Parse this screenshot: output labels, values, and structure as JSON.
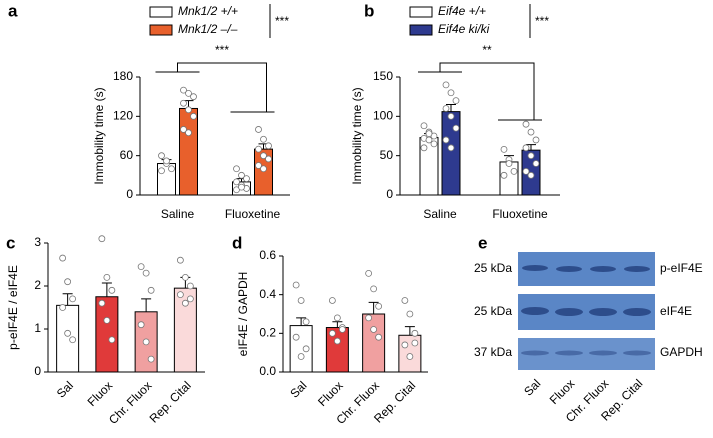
{
  "chart_data": [
    {
      "type": "bar",
      "label": "a",
      "ylabel": "Immobility time (s)",
      "categories": [
        "Saline",
        "Fluoxetine"
      ],
      "series": [
        {
          "name": "Mnk1/2 +/+",
          "color": "#ffffff",
          "values": [
            48,
            20
          ],
          "errors": [
            6,
            5
          ],
          "points": [
            [
              60,
              48,
              40,
              37,
              52
            ],
            [
              40,
              30,
              25,
              20,
              15,
              10,
              8,
              12
            ]
          ]
        },
        {
          "name": "Mnk1/2 –/–",
          "color": "#e8602c",
          "values": [
            132,
            70
          ],
          "errors": [
            12,
            8
          ],
          "points": [
            [
              160,
              155,
              150,
              140,
              130,
              120,
              100,
              95
            ],
            [
              100,
              85,
              75,
              70,
              60,
              55,
              45,
              40
            ]
          ]
        }
      ],
      "ylim": [
        0,
        180
      ],
      "yticks": [
        0,
        60,
        120,
        180
      ],
      "annotations": [
        "***",
        "***"
      ]
    },
    {
      "type": "bar",
      "label": "b",
      "ylabel": "Immobility time (s)",
      "categories": [
        "Saline",
        "Fluoxetine"
      ],
      "series": [
        {
          "name": "Eif4e +/+",
          "color": "#ffffff",
          "values": [
            73,
            42
          ],
          "errors": [
            5,
            8
          ],
          "points": [
            [
              88,
              80,
              75,
              72,
              70,
              65,
              60,
              78
            ],
            [
              58,
              45,
              30,
              25,
              40
            ]
          ]
        },
        {
          "name": "Eif4e ki/ki",
          "color": "#2e3a8f",
          "values": [
            106,
            57
          ],
          "errors": [
            9,
            7
          ],
          "points": [
            [
              140,
              130,
              120,
              110,
              100,
              85,
              70,
              60
            ],
            [
              90,
              80,
              70,
              60,
              50,
              40,
              30,
              25
            ]
          ]
        }
      ],
      "ylim": [
        0,
        150
      ],
      "yticks": [
        0,
        50,
        100,
        150
      ],
      "annotations": [
        "**",
        "***"
      ]
    },
    {
      "type": "bar",
      "label": "c",
      "ylabel": "p-eIF4E / eIF4E",
      "categories": [
        "Sal",
        "Fluox",
        "Chr. Fluox",
        "Rep. Cital"
      ],
      "values": [
        1.55,
        1.75,
        1.4,
        1.95
      ],
      "errors": [
        0.27,
        0.32,
        0.3,
        0.25
      ],
      "colors": [
        "#ffffff",
        "#e03a3a",
        "#f0a0a0",
        "#fadada"
      ],
      "points": [
        [
          2.65,
          2.1,
          1.7,
          1.5,
          0.9,
          0.75
        ],
        [
          3.1,
          2.2,
          1.9,
          1.6,
          1.2,
          0.75
        ],
        [
          2.45,
          2.3,
          1.9,
          1.1,
          0.7,
          0.3
        ],
        [
          2.6,
          2.2,
          2.0,
          1.8,
          1.6,
          1.7
        ]
      ],
      "ylim": [
        0,
        3
      ],
      "yticks": [
        0,
        1,
        2,
        3
      ]
    },
    {
      "type": "bar",
      "label": "d",
      "ylabel": "eIF4E / GAPDH",
      "categories": [
        "Sal",
        "Fluox",
        "Chr. Fluox",
        "Rep. Cital"
      ],
      "values": [
        0.24,
        0.23,
        0.3,
        0.19
      ],
      "errors": [
        0.04,
        0.03,
        0.06,
        0.045
      ],
      "colors": [
        "#ffffff",
        "#e03a3a",
        "#f0a0a0",
        "#fadada"
      ],
      "points": [
        [
          0.45,
          0.37,
          0.26,
          0.18,
          0.08,
          0.12
        ],
        [
          0.37,
          0.28,
          0.23,
          0.2,
          0.16,
          0.22
        ],
        [
          0.51,
          0.43,
          0.34,
          0.28,
          0.22,
          0.18
        ],
        [
          0.37,
          0.3,
          0.2,
          0.14,
          0.08,
          0.15
        ]
      ],
      "ylim": [
        0,
        0.6
      ],
      "yticks": [
        {
          "value": 0,
          "label": "0.0"
        },
        0.2,
        0.4,
        0.6
      ]
    }
  ],
  "blot": {
    "label": "e",
    "rows": [
      {
        "size": "25 kDa",
        "name": "p-eIF4E"
      },
      {
        "size": "25 kDa",
        "name": "eIF4E"
      },
      {
        "size": "37 kDa",
        "name": "GAPDH"
      }
    ],
    "lanes": [
      "Sal",
      "Fluox",
      "Chr. Fluox",
      "Rep. Cital"
    ]
  }
}
